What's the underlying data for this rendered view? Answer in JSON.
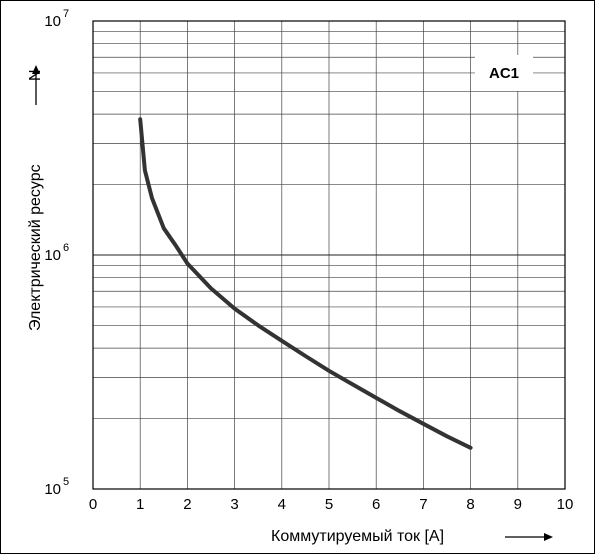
{
  "chart_data": {
    "type": "line",
    "title": "",
    "xlabel": "Коммутируемый ток [A]",
    "ylabel": "Электрический ресурс",
    "y_unit_label": "N",
    "annotation": "AC1",
    "x_ticks": [
      "0",
      "1",
      "2",
      "3",
      "4",
      "5",
      "6",
      "7",
      "8",
      "9",
      "10"
    ],
    "y_ticks": [
      {
        "base": "10",
        "exp": "5"
      },
      {
        "base": "10",
        "exp": "6"
      },
      {
        "base": "10",
        "exp": "7"
      }
    ],
    "xlim": [
      0,
      10
    ],
    "ylim": [
      100000,
      10000000
    ],
    "y_scale": "log",
    "grid": true,
    "series": [
      {
        "x": [
          1.0,
          1.1,
          1.25,
          1.5,
          1.75,
          2.0,
          2.5,
          3.0,
          3.5,
          4.0,
          4.5,
          5.0,
          5.5,
          6.0,
          6.5,
          7.0,
          7.5,
          8.0
        ],
        "y": [
          3800000,
          2300000,
          1750000,
          1300000,
          1100000,
          920000,
          720000,
          590000,
          500000,
          430000,
          370000,
          320000,
          280000,
          245000,
          215000,
          190000,
          168000,
          150000
        ]
      }
    ]
  }
}
